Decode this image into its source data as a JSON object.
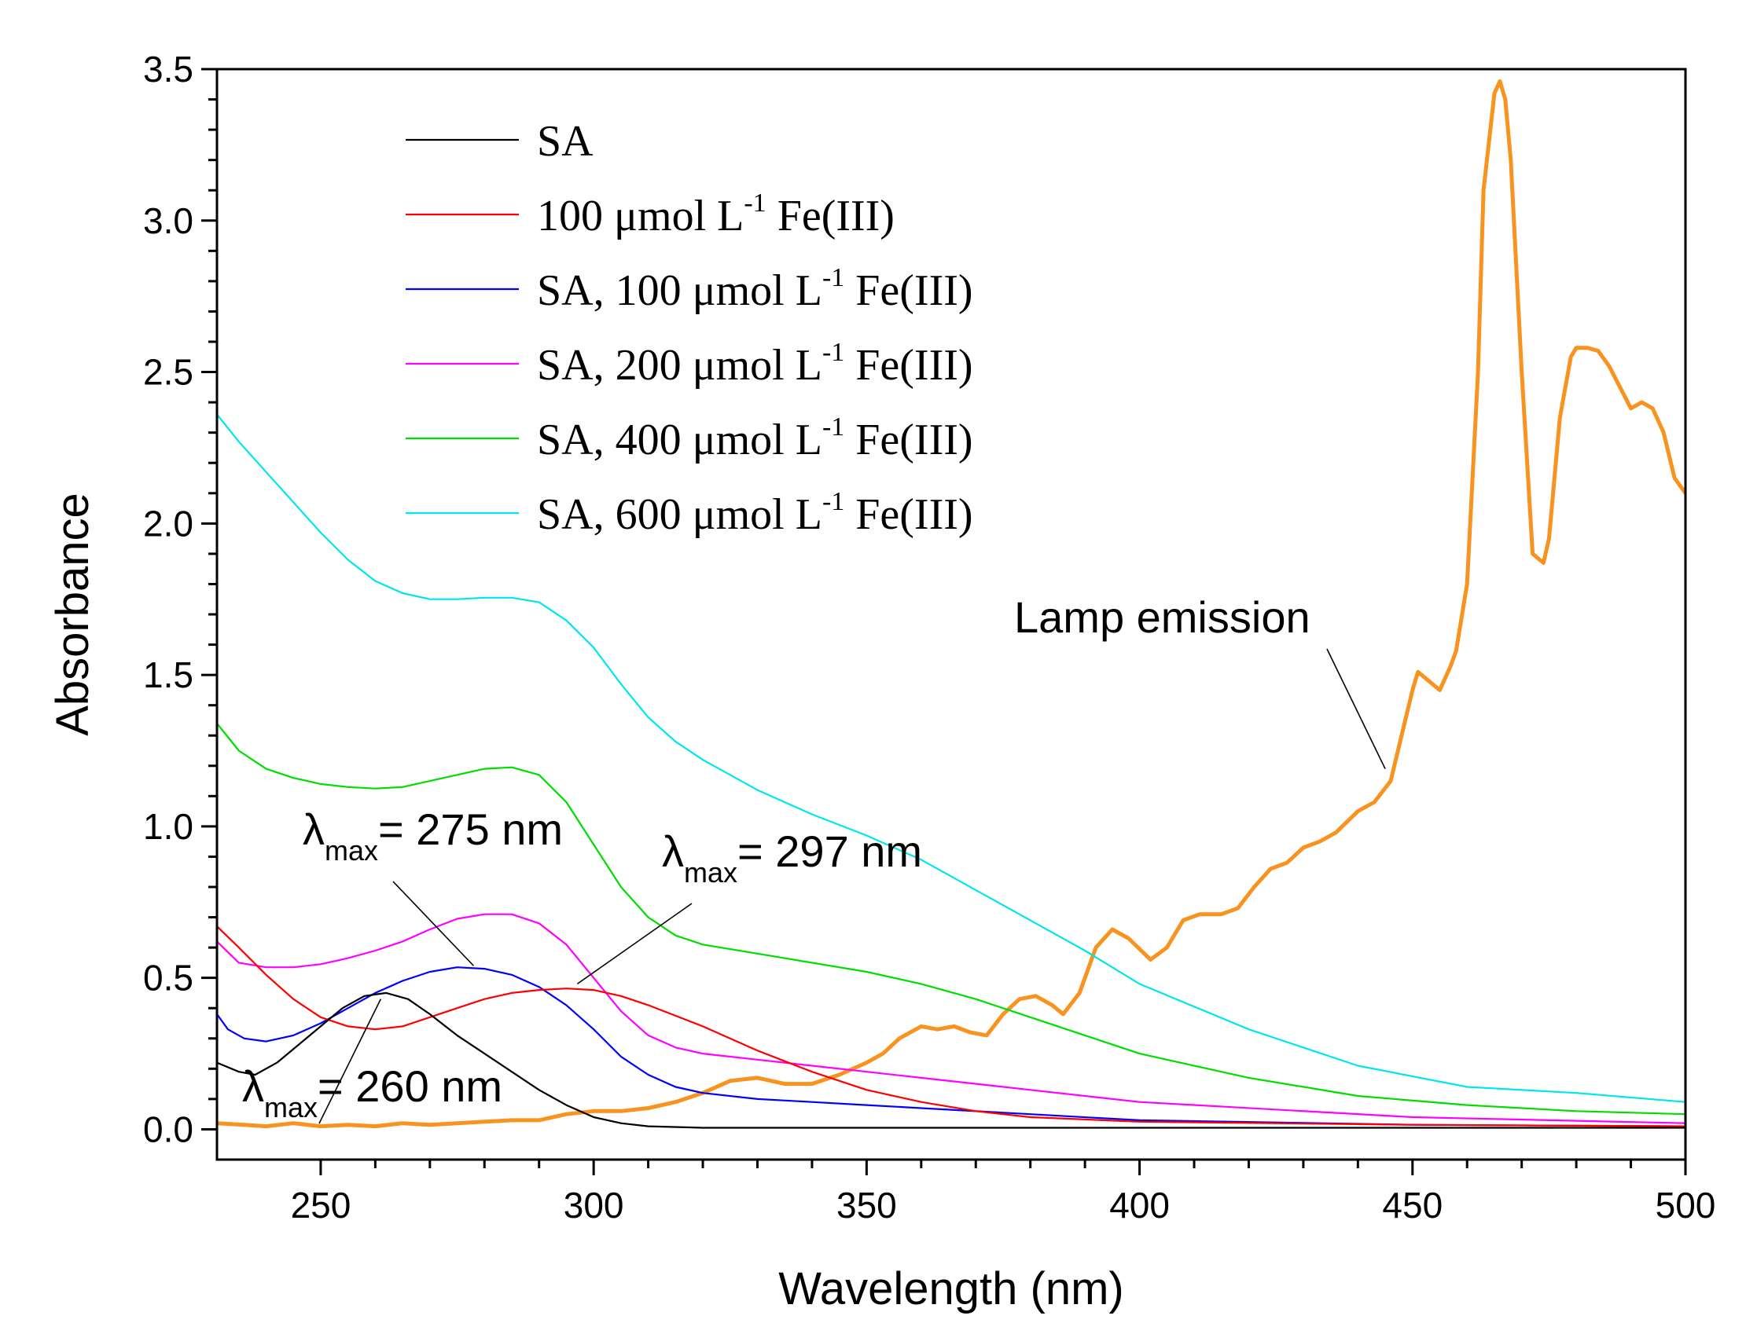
{
  "chart_data": {
    "type": "line",
    "title": "",
    "xlabel": "Wavelength (nm)",
    "ylabel": "Absorbance",
    "xlim": [
      231,
      500
    ],
    "ylim": [
      -0.1,
      3.5
    ],
    "xticks": [
      250,
      300,
      350,
      400,
      450,
      500
    ],
    "yticks": [
      0.0,
      0.5,
      1.0,
      1.5,
      2.0,
      2.5,
      3.0,
      3.5
    ],
    "xtick_labels": [
      "250",
      "300",
      "350",
      "400",
      "450",
      "500"
    ],
    "ytick_labels": [
      "0.0",
      "0.5",
      "1.0",
      "1.5",
      "2.0",
      "2.5",
      "3.0",
      "3.5"
    ],
    "legend_position": "top-left",
    "series": [
      {
        "name": "SA",
        "legend": {
          "main": "SA",
          "sup": "",
          "tail": ""
        },
        "color": "#000000",
        "x": [
          231,
          235,
          238,
          242,
          246,
          250,
          254,
          258,
          262,
          266,
          270,
          275,
          280,
          285,
          290,
          295,
          300,
          305,
          310,
          320,
          340,
          360,
          400,
          450,
          500
        ],
        "y": [
          0.22,
          0.19,
          0.18,
          0.22,
          0.28,
          0.34,
          0.4,
          0.44,
          0.45,
          0.43,
          0.38,
          0.31,
          0.25,
          0.19,
          0.13,
          0.08,
          0.04,
          0.02,
          0.01,
          0.005,
          0.005,
          0.005,
          0.005,
          0.005,
          0.005
        ]
      },
      {
        "name": "100 μmol L-1 Fe(III)",
        "legend": {
          "main": "100 μmol L",
          "sup": "-1",
          "tail": " Fe(III)"
        },
        "color": "#ff0000",
        "x": [
          231,
          235,
          240,
          245,
          250,
          255,
          260,
          265,
          270,
          275,
          280,
          285,
          290,
          295,
          300,
          305,
          310,
          320,
          330,
          340,
          350,
          360,
          370,
          380,
          400,
          450,
          500
        ],
        "y": [
          0.67,
          0.6,
          0.51,
          0.43,
          0.37,
          0.34,
          0.33,
          0.34,
          0.37,
          0.4,
          0.43,
          0.45,
          0.46,
          0.465,
          0.46,
          0.44,
          0.41,
          0.34,
          0.26,
          0.19,
          0.13,
          0.09,
          0.06,
          0.04,
          0.025,
          0.015,
          0.01
        ]
      },
      {
        "name": "SA, 100 μmol L-1 Fe(III)",
        "legend": {
          "main": "SA, 100 μmol L",
          "sup": "-1",
          "tail": " Fe(III)"
        },
        "color": "#0000ff",
        "x": [
          231,
          233,
          236,
          240,
          245,
          250,
          255,
          260,
          265,
          270,
          275,
          280,
          285,
          290,
          295,
          300,
          305,
          310,
          315,
          320,
          330,
          340,
          350,
          360,
          380,
          400,
          450,
          500
        ],
        "y": [
          0.38,
          0.33,
          0.3,
          0.29,
          0.31,
          0.35,
          0.4,
          0.45,
          0.49,
          0.52,
          0.535,
          0.53,
          0.51,
          0.47,
          0.41,
          0.33,
          0.24,
          0.18,
          0.14,
          0.12,
          0.1,
          0.09,
          0.08,
          0.07,
          0.05,
          0.03,
          0.015,
          0.01
        ]
      },
      {
        "name": "SA, 200 μmol L-1 Fe(III)",
        "legend": {
          "main": "SA, 200 μmol L",
          "sup": "-1",
          "tail": " Fe(III)"
        },
        "color": "#ff00ff",
        "x": [
          231,
          235,
          240,
          245,
          250,
          255,
          260,
          265,
          270,
          275,
          280,
          285,
          290,
          295,
          300,
          305,
          310,
          315,
          320,
          330,
          340,
          350,
          360,
          380,
          400,
          450,
          500
        ],
        "y": [
          0.62,
          0.55,
          0.535,
          0.535,
          0.545,
          0.565,
          0.59,
          0.62,
          0.66,
          0.695,
          0.71,
          0.71,
          0.68,
          0.61,
          0.5,
          0.39,
          0.31,
          0.27,
          0.25,
          0.23,
          0.21,
          0.19,
          0.17,
          0.13,
          0.09,
          0.04,
          0.02
        ]
      },
      {
        "name": "SA, 400 μmol L-1 Fe(III)",
        "legend": {
          "main": "SA, 400 μmol L",
          "sup": "-1",
          "tail": " Fe(III)"
        },
        "color": "#00dd00",
        "x": [
          231,
          235,
          240,
          245,
          250,
          255,
          260,
          265,
          270,
          275,
          280,
          285,
          290,
          295,
          300,
          305,
          310,
          315,
          320,
          330,
          340,
          350,
          360,
          370,
          380,
          390,
          400,
          420,
          440,
          460,
          480,
          500
        ],
        "y": [
          1.34,
          1.25,
          1.19,
          1.16,
          1.14,
          1.13,
          1.125,
          1.13,
          1.15,
          1.17,
          1.19,
          1.195,
          1.17,
          1.08,
          0.94,
          0.8,
          0.7,
          0.64,
          0.61,
          0.58,
          0.55,
          0.52,
          0.48,
          0.43,
          0.37,
          0.31,
          0.25,
          0.17,
          0.11,
          0.08,
          0.06,
          0.05
        ]
      },
      {
        "name": "SA, 600 μmol L-1 Fe(III)",
        "legend": {
          "main": "SA, 600 μmol L",
          "sup": "-1",
          "tail": " Fe(III)"
        },
        "color": "#00e5ee",
        "x": [
          231,
          235,
          240,
          245,
          250,
          255,
          260,
          265,
          270,
          275,
          280,
          285,
          290,
          295,
          300,
          305,
          310,
          315,
          320,
          330,
          340,
          350,
          360,
          370,
          380,
          390,
          400,
          420,
          440,
          460,
          480,
          500
        ],
        "y": [
          2.36,
          2.27,
          2.17,
          2.07,
          1.97,
          1.88,
          1.81,
          1.77,
          1.75,
          1.75,
          1.755,
          1.755,
          1.74,
          1.68,
          1.59,
          1.47,
          1.36,
          1.28,
          1.22,
          1.12,
          1.04,
          0.97,
          0.89,
          0.79,
          0.69,
          0.59,
          0.48,
          0.33,
          0.21,
          0.14,
          0.12,
          0.09
        ]
      },
      {
        "name": "Lamp emission",
        "legend": null,
        "color": "#f7931e",
        "width": 5,
        "x": [
          231,
          236,
          240,
          245,
          250,
          255,
          260,
          265,
          270,
          275,
          280,
          285,
          290,
          295,
          300,
          305,
          310,
          315,
          320,
          325,
          330,
          335,
          340,
          345,
          350,
          353,
          356,
          360,
          363,
          366,
          369,
          372,
          375,
          378,
          381,
          384,
          386,
          389,
          392,
          395,
          398,
          402,
          405,
          408,
          411,
          415,
          418,
          421,
          424,
          427,
          430,
          433,
          436,
          440,
          443,
          446,
          448,
          450,
          451,
          453,
          455,
          457,
          458,
          460,
          462,
          463,
          465,
          466,
          467,
          468,
          470,
          472,
          474,
          475,
          477,
          479,
          480,
          482,
          484,
          486,
          488,
          490,
          492,
          494,
          496,
          498,
          500
        ],
        "y": [
          0.02,
          0.015,
          0.01,
          0.02,
          0.01,
          0.015,
          0.01,
          0.02,
          0.015,
          0.02,
          0.025,
          0.03,
          0.03,
          0.05,
          0.06,
          0.06,
          0.07,
          0.09,
          0.12,
          0.16,
          0.17,
          0.15,
          0.15,
          0.18,
          0.22,
          0.25,
          0.3,
          0.34,
          0.33,
          0.34,
          0.32,
          0.31,
          0.38,
          0.43,
          0.44,
          0.41,
          0.38,
          0.45,
          0.6,
          0.66,
          0.63,
          0.56,
          0.6,
          0.69,
          0.71,
          0.71,
          0.73,
          0.8,
          0.86,
          0.88,
          0.93,
          0.95,
          0.98,
          1.05,
          1.08,
          1.15,
          1.3,
          1.45,
          1.51,
          1.48,
          1.45,
          1.53,
          1.58,
          1.8,
          2.5,
          3.1,
          3.42,
          3.46,
          3.4,
          3.2,
          2.5,
          1.9,
          1.87,
          1.95,
          2.35,
          2.55,
          2.58,
          2.58,
          2.57,
          2.52,
          2.45,
          2.38,
          2.4,
          2.38,
          2.3,
          2.15,
          2.1
        ]
      }
    ],
    "annotations": [
      {
        "id": "peak-260",
        "lambda": "λ",
        "sub": "max",
        "rest": "= 260 nm",
        "point": [
          261,
          0.43
        ]
      },
      {
        "id": "peak-275",
        "lambda": "λ",
        "sub": "max",
        "rest": "= 275 nm",
        "point": [
          278,
          0.54
        ]
      },
      {
        "id": "peak-297",
        "lambda": "λ",
        "sub": "max",
        "rest": "= 297 nm",
        "point": [
          297,
          0.48
        ]
      },
      {
        "id": "lamp",
        "lambda": "",
        "sub": "",
        "rest": "Lamp emission",
        "point": [
          445,
          1.19
        ]
      }
    ]
  }
}
